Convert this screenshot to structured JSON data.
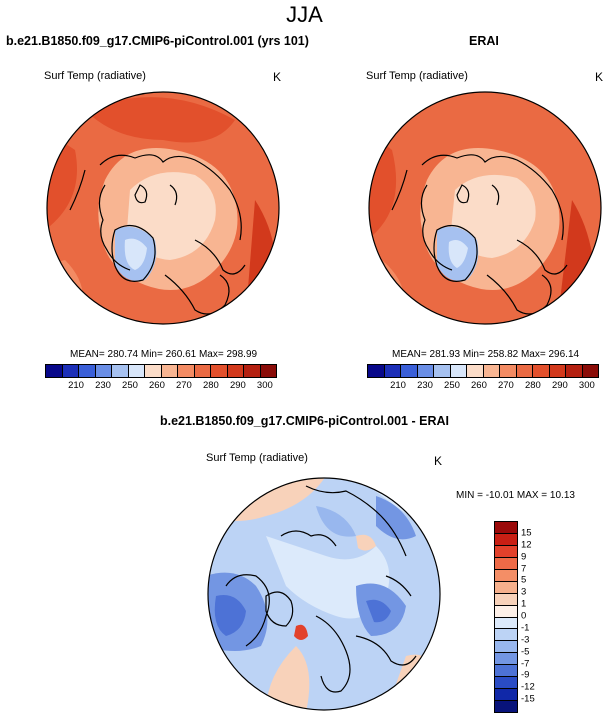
{
  "page_title": "JJA",
  "units": "K",
  "variable": "Surf Temp (radiative)",
  "panels": [
    {
      "title": "b.e21.B1850.f09_g17.CMIP6-piControl.001 (yrs 101)",
      "stats": "MEAN= 280.74  Min= 260.61  Max= 298.99"
    },
    {
      "title": "ERAI",
      "stats": "MEAN= 281.93  Min= 258.82  Max= 296.14"
    },
    {
      "title": "b.e21.B1850.f09_g17.CMIP6-piControl.001 - ERAI",
      "stats": "MIN = -10.01 MAX =  10.13"
    }
  ],
  "abs_colorbar": {
    "colors": [
      "#08088a",
      "#1c2fb8",
      "#3a5fd8",
      "#6a8ee6",
      "#a6c1f0",
      "#d8e6fa",
      "#fbdcc8",
      "#f8b592",
      "#f38b63",
      "#ea6a43",
      "#e2502c",
      "#d2391c",
      "#b42010",
      "#8a0c08"
    ],
    "tick_labels": [
      "210",
      "230",
      "250",
      "260",
      "270",
      "280",
      "290",
      "300"
    ]
  },
  "diff_colorbar": {
    "colors": [
      "#9b0a0a",
      "#c91f14",
      "#e2412b",
      "#ee6a47",
      "#f48e66",
      "#f6b08c",
      "#f8d2ba",
      "#fdf0e8",
      "#dceafb",
      "#bcd3f5",
      "#98b7ee",
      "#7396e3",
      "#4d72d6",
      "#2a4cc5",
      "#1028a8",
      "#08137a"
    ],
    "tick_labels": [
      "15",
      "12",
      "9",
      "7",
      "5",
      "3",
      "1",
      "0",
      "-1",
      "-3",
      "-5",
      "-7",
      "-9",
      "-12",
      "-15"
    ]
  }
}
